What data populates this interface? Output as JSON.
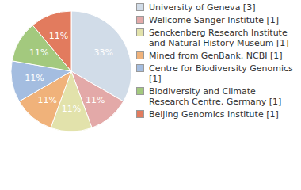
{
  "chart_data": {
    "type": "pie",
    "categories": [
      "University of Geneva [3]",
      "Wellcome Sanger Institute [1]",
      "Senckenberg Research Institute and Natural History Museum [1]",
      "Mined from GenBank, NCBI [1]",
      "Centre for Biodiversity Genomics [1]",
      "Biodiversity and Climate Research Centre, Germany [1]",
      "Beijing Genomics Institute [1]"
    ],
    "values": [
      33,
      11,
      11,
      11,
      11,
      11,
      11
    ],
    "value_labels": [
      "33%",
      "11%",
      "11%",
      "11%",
      "11%",
      "11%",
      "11%"
    ],
    "colors": [
      "#d1dce8",
      "#e3a9a8",
      "#e2e2ab",
      "#f0b27a",
      "#a4bde0",
      "#a3c97e",
      "#e27b5e"
    ],
    "data_labels": true,
    "legend": "right"
  }
}
